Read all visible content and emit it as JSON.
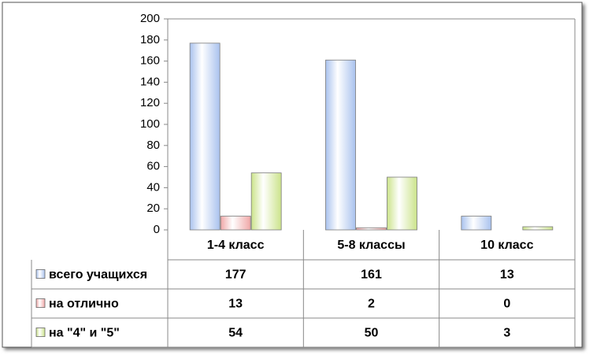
{
  "chart_data": {
    "type": "bar",
    "categories": [
      "1-4 класс",
      "5-8 классы",
      "10 класс"
    ],
    "series": [
      {
        "name": "всего учащихся",
        "color": "#a9c2ee",
        "values": [
          177,
          161,
          13
        ]
      },
      {
        "name": "на отлично",
        "color": "#f0a7a7",
        "values": [
          13,
          2,
          0
        ]
      },
      {
        "name": "на \"4\" и \"5\"",
        "color": "#cbe38a",
        "values": [
          54,
          50,
          3
        ]
      }
    ],
    "ylim": [
      0,
      200
    ],
    "yticks": [
      0,
      20,
      40,
      60,
      80,
      100,
      120,
      140,
      160,
      180,
      200
    ],
    "grid": false,
    "legend": "data-table"
  }
}
